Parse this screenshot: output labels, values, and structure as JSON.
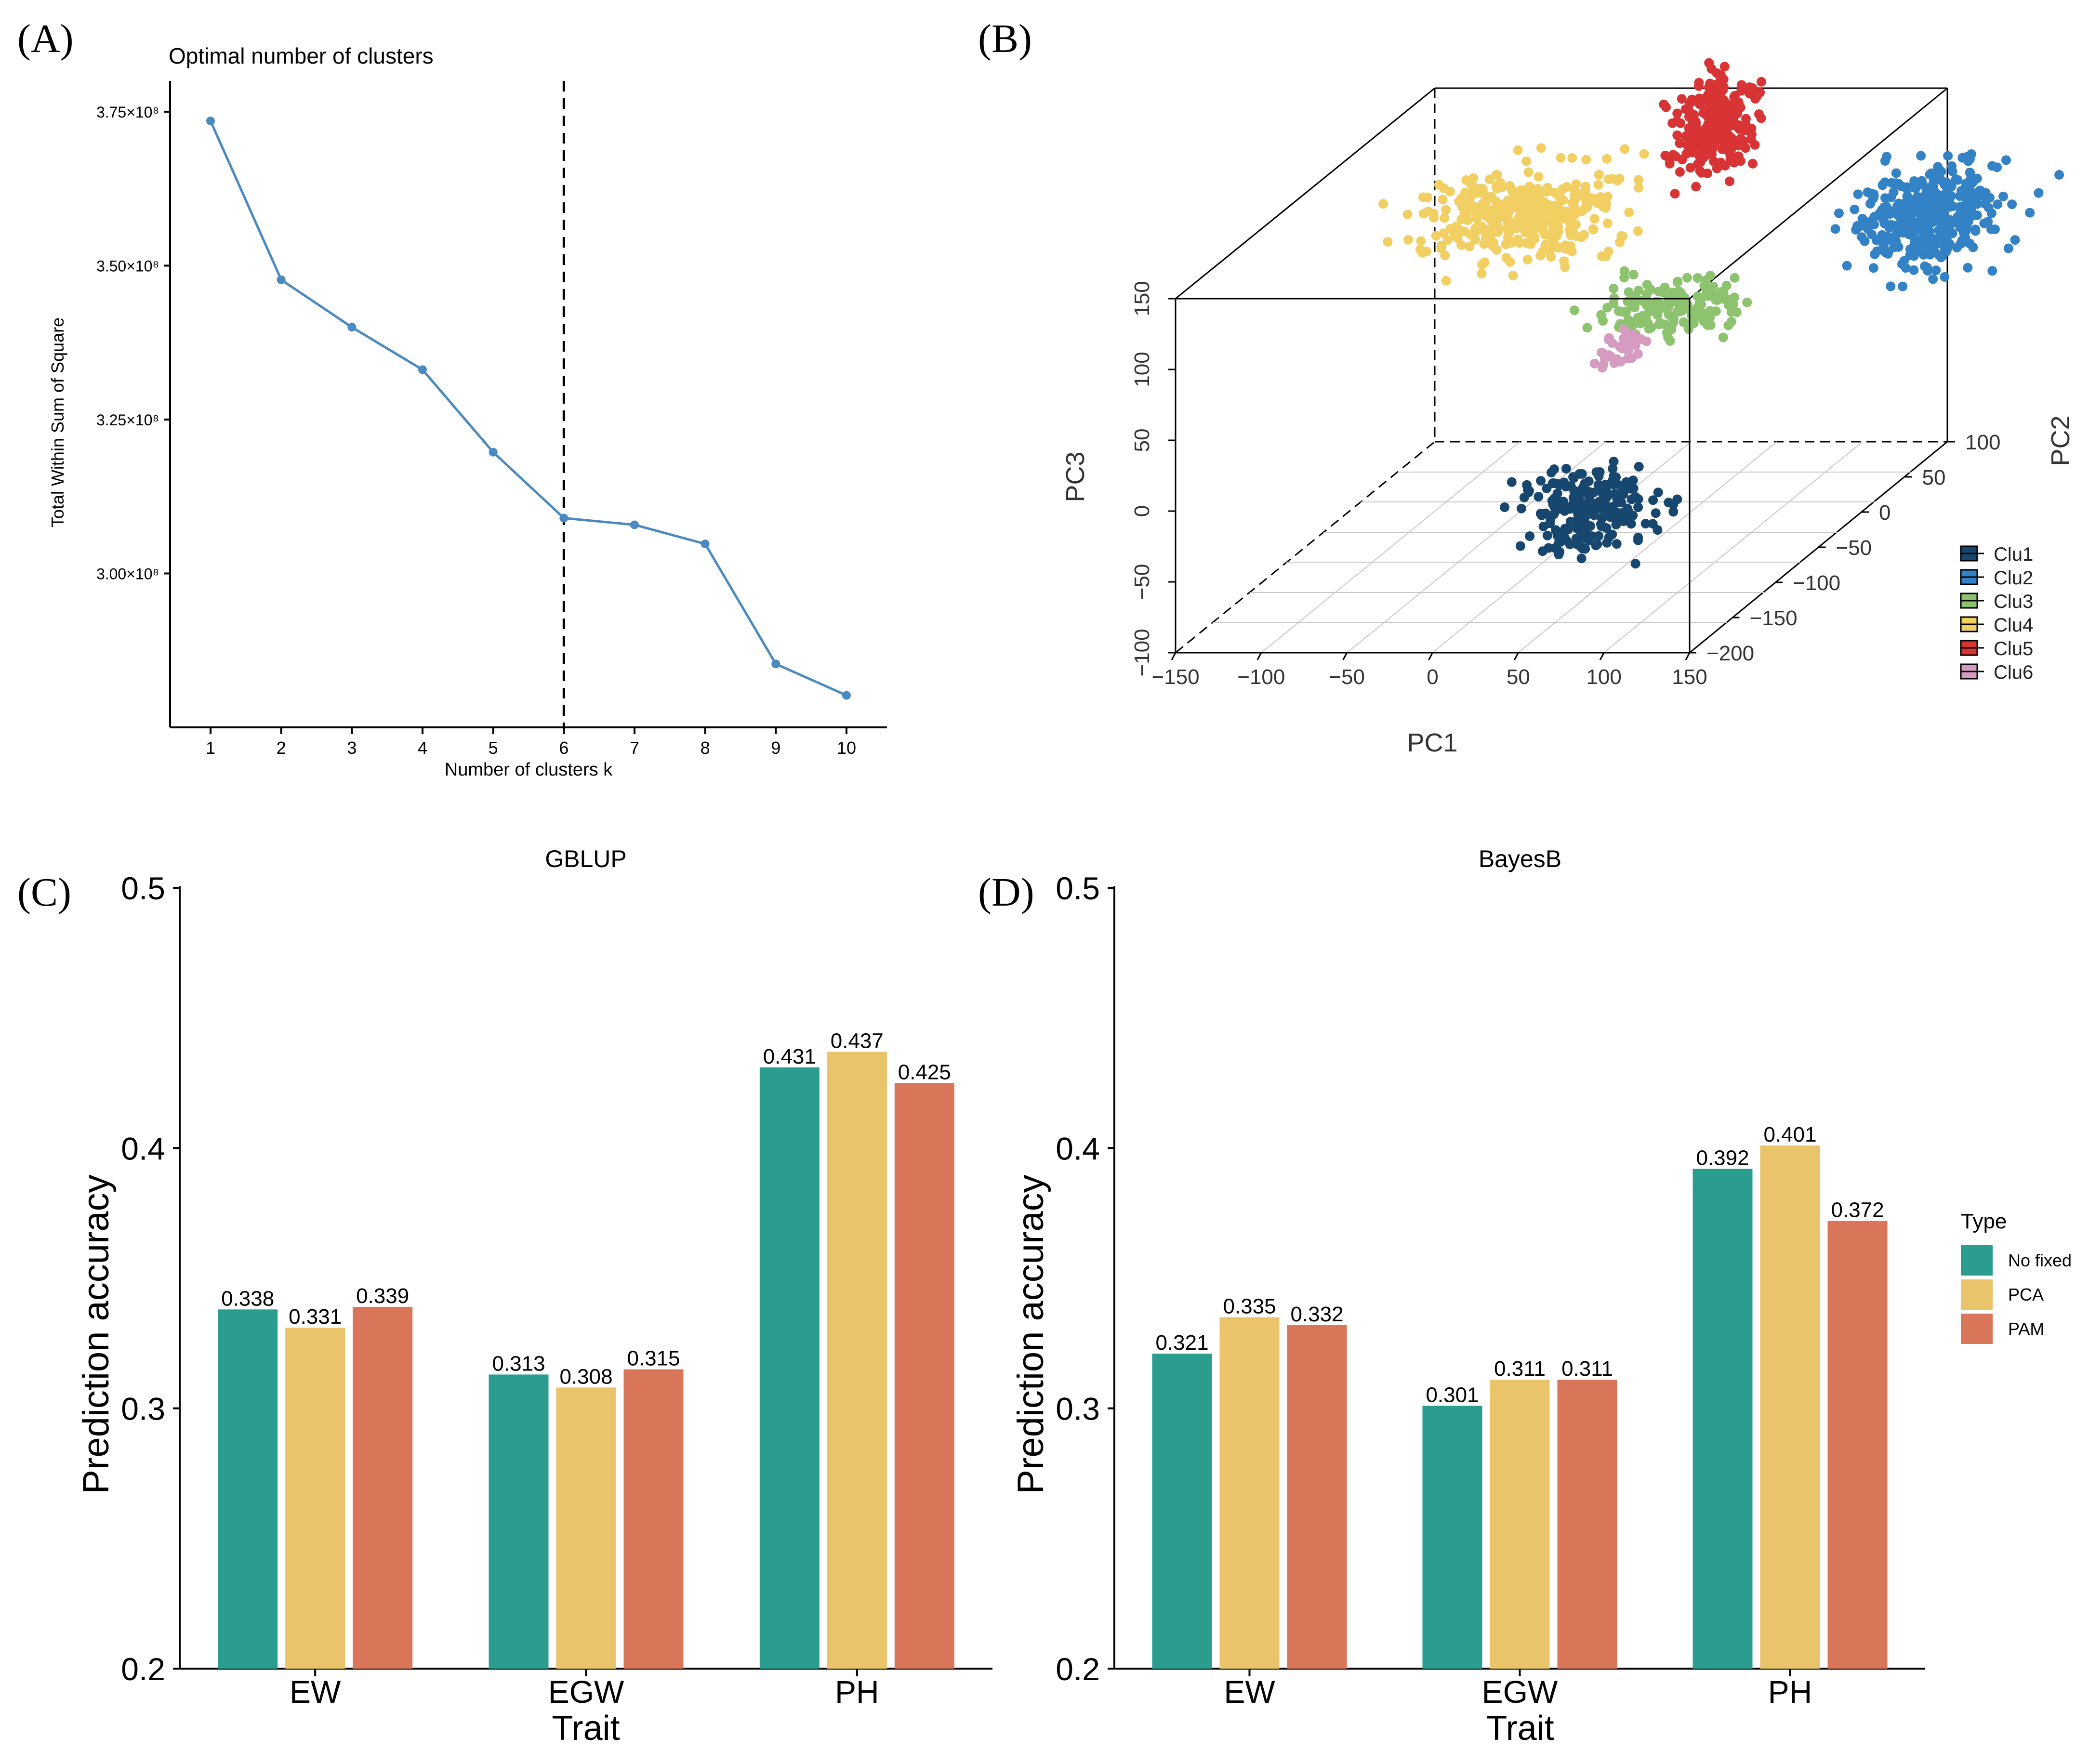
{
  "colors": {
    "line": "#4a8ac1",
    "clu1": "#17476f",
    "clu2": "#3382c6",
    "clu3": "#8dc26f",
    "clu4": "#f2cf63",
    "clu5": "#d93435",
    "clu6": "#d59bc0",
    "no_fixed": "#2a9d8f",
    "pca": "#e9c46a",
    "pam": "#d97559"
  },
  "chart_data": [
    {
      "panel": "(A)",
      "type": "line",
      "title": "Optimal number of clusters",
      "xlabel": "Number of clusters k",
      "ylabel": "Total Within Sum of Square",
      "x": [
        1,
        2,
        3,
        4,
        5,
        6,
        7,
        8,
        9,
        10
      ],
      "x_tick_labels": [
        "1",
        "2",
        "3",
        "4",
        "5",
        "6",
        "7",
        "8",
        "9",
        "10"
      ],
      "values": [
        373500000,
        347700000,
        340000000,
        333100000,
        319700000,
        309000000,
        307900000,
        304800000,
        285300000,
        280200000
      ],
      "ylim": [
        275000000,
        380000000
      ],
      "y_ticks": [
        300000000,
        325000000,
        350000000,
        375000000
      ],
      "y_tick_labels": [
        "3.00×10⁸",
        "3.25×10⁸",
        "3.50×10⁸",
        "3.75×10⁸"
      ],
      "vline_k": 6
    },
    {
      "panel": "(B)",
      "type": "scatter",
      "title": "",
      "xlabel": "PC1",
      "ylabel": "PC3",
      "zlabel": "PC2",
      "pc1_ticks": [
        "−150",
        "−100",
        "−50",
        "0",
        "50",
        "100",
        "150"
      ],
      "pc3_ticks": [
        "−100",
        "−50",
        "0",
        "50",
        "100",
        "150"
      ],
      "pc2_ticks": [
        "−200",
        "−150",
        "−100",
        "−50",
        "0",
        "50",
        "100"
      ],
      "legend": [
        "Clu1",
        "Clu2",
        "Clu3",
        "Clu4",
        "Clu5",
        "Clu6"
      ],
      "clusters": [
        {
          "name": "Clu1",
          "pc1": 40,
          "pc2": -100,
          "pc3": -50,
          "n": 220
        },
        {
          "name": "Clu2",
          "pc1": 170,
          "pc2": 40,
          "pc3": 90,
          "n": 380
        },
        {
          "name": "Clu3",
          "pc1": 50,
          "pc2": -20,
          "pc3": 55,
          "n": 160
        },
        {
          "name": "Clu4",
          "pc1": -60,
          "pc2": 20,
          "pc3": 100,
          "n": 380
        },
        {
          "name": "Clu5",
          "pc1": 40,
          "pc2": 50,
          "pc3": 150,
          "n": 240
        },
        {
          "name": "Clu6",
          "pc1": 30,
          "pc2": -40,
          "pc3": 35,
          "n": 40
        }
      ]
    },
    {
      "panel": "(C)",
      "type": "bar",
      "title": "GBLUP",
      "xlabel": "Trait",
      "ylabel": "Prediction accuracy",
      "categories": [
        "EW",
        "EGW",
        "PH"
      ],
      "series": [
        {
          "name": "No fixed",
          "values": [
            0.338,
            0.313,
            0.431
          ],
          "labels": [
            "0.338",
            "0.313",
            "0.431"
          ]
        },
        {
          "name": "PCA",
          "values": [
            0.331,
            0.308,
            0.437
          ],
          "labels": [
            "0.331",
            "0.308",
            "0.437"
          ]
        },
        {
          "name": "PAM",
          "values": [
            0.339,
            0.315,
            0.425
          ],
          "labels": [
            "0.339",
            "0.315",
            "0.425"
          ]
        }
      ],
      "ylim": [
        0.2,
        0.5
      ],
      "y_ticks": [
        0.2,
        0.3,
        0.4,
        0.5
      ],
      "y_tick_labels": [
        "0.2",
        "0.3",
        "0.4",
        "0.5"
      ]
    },
    {
      "panel": "(D)",
      "type": "bar",
      "title": "BayesB",
      "xlabel": "Trait",
      "ylabel": "Prediction accuracy",
      "categories": [
        "EW",
        "EGW",
        "PH"
      ],
      "series": [
        {
          "name": "No fixed",
          "values": [
            0.321,
            0.301,
            0.392
          ],
          "labels": [
            "0.321",
            "0.301",
            "0.392"
          ]
        },
        {
          "name": "PCA",
          "values": [
            0.335,
            0.311,
            0.401
          ],
          "labels": [
            "0.335",
            "0.311",
            "0.401"
          ]
        },
        {
          "name": "PAM",
          "values": [
            0.332,
            0.311,
            0.372
          ],
          "labels": [
            "0.332",
            "0.311",
            "0.372"
          ]
        }
      ],
      "ylim": [
        0.2,
        0.5
      ],
      "y_ticks": [
        0.2,
        0.3,
        0.4,
        0.5
      ],
      "y_tick_labels": [
        "0.2",
        "0.3",
        "0.4",
        "0.5"
      ],
      "legend_title": "Type",
      "legend": [
        "No fixed",
        "PCA",
        "PAM"
      ]
    }
  ]
}
